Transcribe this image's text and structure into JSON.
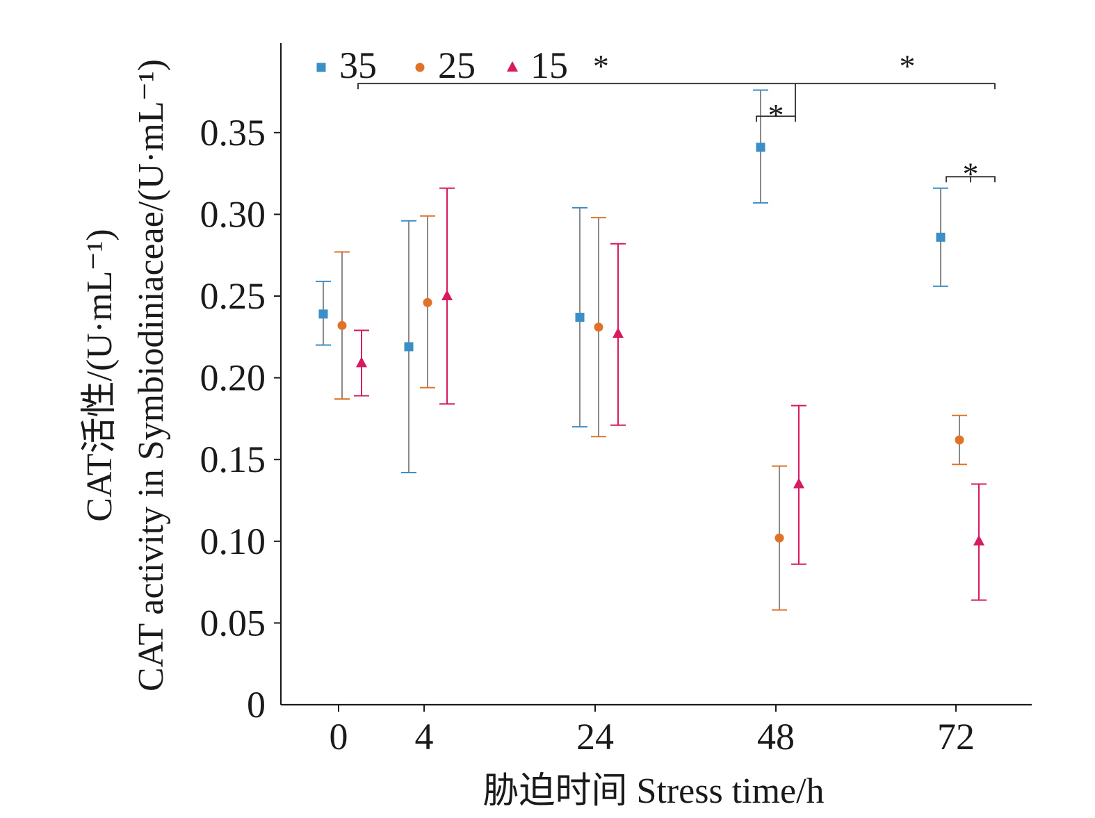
{
  "chart_data": {
    "type": "scatter",
    "xlabel": "胁迫时间 Stress time/h",
    "ylabel_lines": [
      "CAT活性/(U·mL⁻¹)",
      "CAT activity in Symbiodiniaceae/(U·mL⁻¹)"
    ],
    "x_tick_labels": [
      "0",
      "4",
      "24",
      "48",
      "72"
    ],
    "y_tick_labels": [
      "0",
      "0.05",
      "0.10",
      "0.15",
      "0.20",
      "0.25",
      "0.30",
      "0.35"
    ],
    "ylim": [
      0,
      0.4
    ],
    "legend_position": "top-left",
    "series": [
      {
        "name": "35",
        "marker": "square",
        "color": "#3a8fc7",
        "error_color": "#8a8a8a",
        "points": [
          {
            "x": "0",
            "y": 0.239,
            "low": 0.22,
            "high": 0.259
          },
          {
            "x": "4",
            "y": 0.219,
            "low": 0.142,
            "high": 0.296
          },
          {
            "x": "24",
            "y": 0.237,
            "low": 0.17,
            "high": 0.304
          },
          {
            "x": "48",
            "y": 0.341,
            "low": 0.307,
            "high": 0.376
          },
          {
            "x": "72",
            "y": 0.286,
            "low": 0.256,
            "high": 0.316
          }
        ]
      },
      {
        "name": "25",
        "marker": "circle",
        "color": "#e0722a",
        "error_color": "#8a8a8a",
        "points": [
          {
            "x": "0",
            "y": 0.232,
            "low": 0.187,
            "high": 0.277
          },
          {
            "x": "4",
            "y": 0.246,
            "low": 0.194,
            "high": 0.299
          },
          {
            "x": "24",
            "y": 0.231,
            "low": 0.164,
            "high": 0.298
          },
          {
            "x": "48",
            "y": 0.102,
            "low": 0.058,
            "high": 0.146
          },
          {
            "x": "72",
            "y": 0.162,
            "low": 0.147,
            "high": 0.177
          }
        ]
      },
      {
        "name": "15",
        "marker": "triangle",
        "color": "#d81b60",
        "error_color": "#d81b60",
        "points": [
          {
            "x": "0",
            "y": 0.209,
            "low": 0.189,
            "high": 0.229
          },
          {
            "x": "4",
            "y": 0.25,
            "low": 0.184,
            "high": 0.316
          },
          {
            "x": "24",
            "y": 0.227,
            "low": 0.171,
            "high": 0.282
          },
          {
            "x": "48",
            "y": 0.135,
            "low": 0.086,
            "high": 0.183
          },
          {
            "x": "72",
            "y": 0.1,
            "low": 0.064,
            "high": 0.135
          }
        ]
      }
    ],
    "annotations": [
      {
        "text": "*",
        "type": "bracket",
        "from": {
          "x": "0",
          "offset": 1
        },
        "to": {
          "x": "72",
          "offset": 2
        },
        "level": 0.38,
        "star_x": {
          "x": "24",
          "offset": 0.3
        },
        "star_level": 0.397
      },
      {
        "text": "*",
        "type": "star",
        "position": {
          "x": "72",
          "offset": -2.5
        },
        "star_level": 0.397
      },
      {
        "text": "*",
        "type": "bracket",
        "from": {
          "x": "48",
          "offset": -1
        },
        "to": {
          "x": "48",
          "offset": 1
        },
        "level": 0.36,
        "star_level": 0.367
      },
      {
        "text": "*",
        "type": "bracket",
        "from": {
          "x": "72",
          "offset": -0.5
        },
        "to": {
          "x": "72",
          "offset": 2
        },
        "level": 0.323,
        "star_level": 0.331,
        "mid_tick": true
      }
    ]
  }
}
